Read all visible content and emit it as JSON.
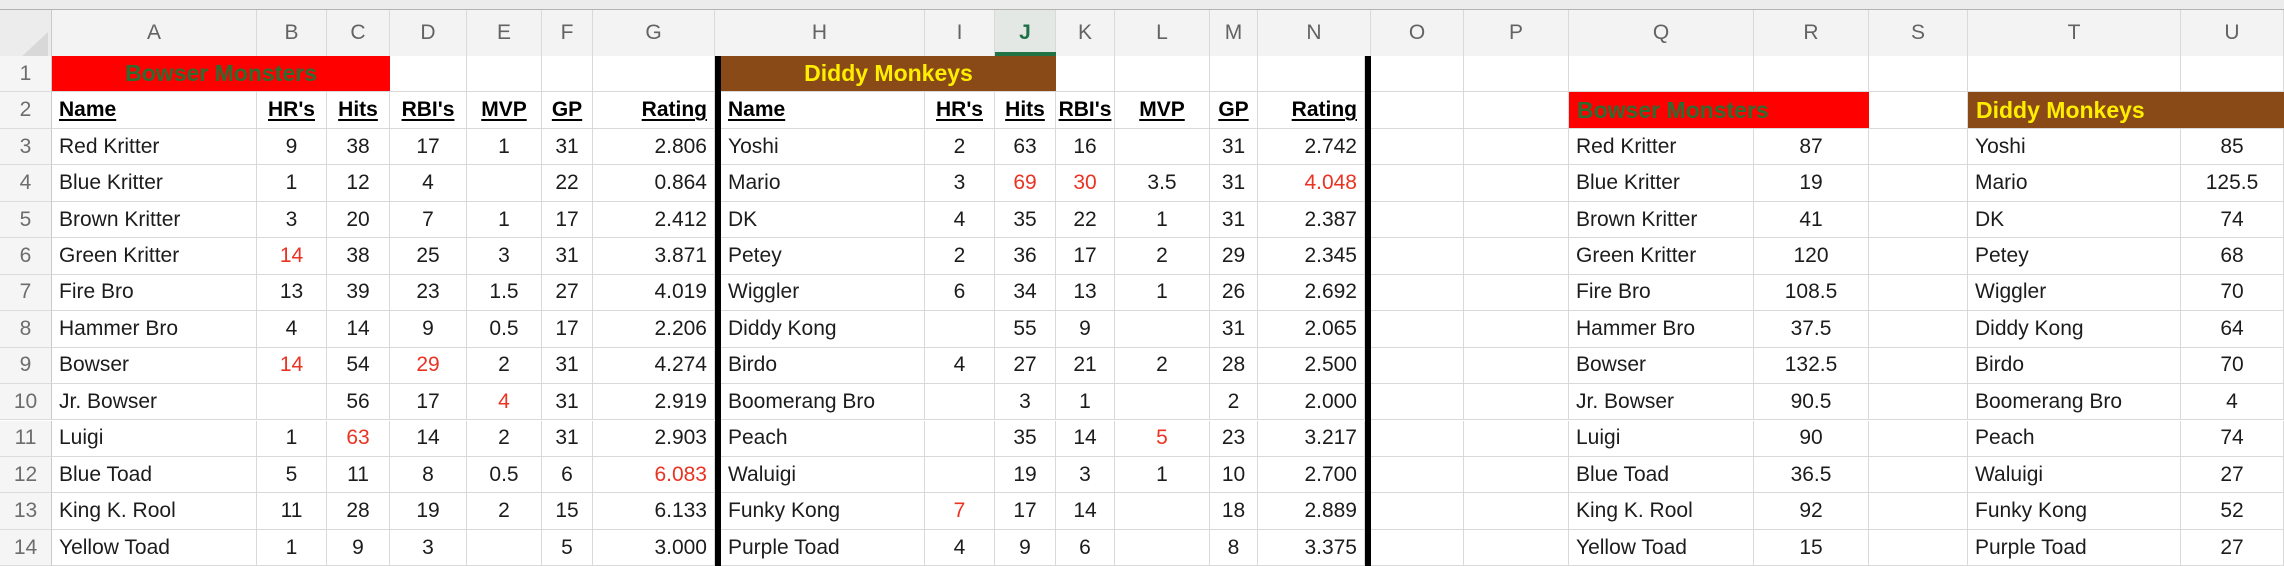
{
  "sheet": {
    "columns": [
      "A",
      "B",
      "C",
      "D",
      "E",
      "F",
      "G",
      "H",
      "I",
      "J",
      "K",
      "L",
      "M",
      "N",
      "O",
      "P",
      "Q",
      "R",
      "S",
      "T",
      "U"
    ],
    "selected_column": "J",
    "rows": [
      "1",
      "2",
      "3",
      "4",
      "5",
      "6",
      "7",
      "8",
      "9",
      "10",
      "11",
      "12",
      "13",
      "14"
    ]
  },
  "colors": {
    "banner_red": "#ff0000",
    "banner_brown": "#8a4a17",
    "title_green": "#2e6b30",
    "title_yellow": "#ffee00",
    "value_red": "#ea3323",
    "selection_green": "#217346"
  },
  "stat_headers": [
    "Name",
    "HR's",
    "Hits",
    "RBI's",
    "MVP",
    "GP",
    "Rating"
  ],
  "teams": {
    "bowser": {
      "title": "Bowser Monsters",
      "rows": [
        [
          "Red Kritter",
          "9",
          "38",
          "17",
          "1",
          "31",
          "2.806"
        ],
        [
          "Blue Kritter",
          "1",
          "12",
          "4",
          "",
          "22",
          "0.864"
        ],
        [
          "Brown Kritter",
          "3",
          "20",
          "7",
          "1",
          "17",
          "2.412"
        ],
        [
          "Green Kritter",
          "14",
          "38",
          "25",
          "3",
          "31",
          "3.871"
        ],
        [
          "Fire Bro",
          "13",
          "39",
          "23",
          "1.5",
          "27",
          "4.019"
        ],
        [
          "Hammer Bro",
          "4",
          "14",
          "9",
          "0.5",
          "17",
          "2.206"
        ],
        [
          "Bowser",
          "14",
          "54",
          "29",
          "2",
          "31",
          "4.274"
        ],
        [
          "Jr. Bowser",
          "",
          "56",
          "17",
          "4",
          "31",
          "2.919"
        ],
        [
          "Luigi",
          "1",
          "63",
          "14",
          "2",
          "31",
          "2.903"
        ],
        [
          "Blue Toad",
          "5",
          "11",
          "8",
          "0.5",
          "6",
          "6.083"
        ],
        [
          "King K. Rool",
          "11",
          "28",
          "19",
          "2",
          "15",
          "6.133"
        ],
        [
          "Yellow Toad",
          "1",
          "9",
          "3",
          "",
          "5",
          "3.000"
        ]
      ],
      "red_cells": [
        [
          3,
          1
        ],
        [
          6,
          1
        ],
        [
          6,
          3
        ],
        [
          7,
          4
        ],
        [
          8,
          2
        ],
        [
          9,
          6
        ]
      ]
    },
    "diddy": {
      "title": "Diddy Monkeys",
      "rows": [
        [
          "Yoshi",
          "2",
          "63",
          "16",
          "",
          "31",
          "2.742"
        ],
        [
          "Mario",
          "3",
          "69",
          "30",
          "3.5",
          "31",
          "4.048"
        ],
        [
          "DK",
          "4",
          "35",
          "22",
          "1",
          "31",
          "2.387"
        ],
        [
          "Petey",
          "2",
          "36",
          "17",
          "2",
          "29",
          "2.345"
        ],
        [
          "Wiggler",
          "6",
          "34",
          "13",
          "1",
          "26",
          "2.692"
        ],
        [
          "Diddy Kong",
          "",
          "55",
          "9",
          "",
          "31",
          "2.065"
        ],
        [
          "Birdo",
          "4",
          "27",
          "21",
          "2",
          "28",
          "2.500"
        ],
        [
          "Boomerang Bro",
          "",
          "3",
          "1",
          "",
          "2",
          "2.000"
        ],
        [
          "Peach",
          "",
          "35",
          "14",
          "5",
          "23",
          "3.217"
        ],
        [
          "Waluigi",
          "",
          "19",
          "3",
          "1",
          "10",
          "2.700"
        ],
        [
          "Funky Kong",
          "7",
          "17",
          "14",
          "",
          "18",
          "2.889"
        ],
        [
          "Purple Toad",
          "4",
          "9",
          "6",
          "",
          "8",
          "3.375"
        ]
      ],
      "red_cells": [
        [
          1,
          2
        ],
        [
          1,
          3
        ],
        [
          1,
          6
        ],
        [
          8,
          4
        ],
        [
          10,
          1
        ]
      ]
    },
    "bowser_summary": {
      "title": "Bowser Monsters",
      "rows": [
        [
          "Red Kritter",
          "87"
        ],
        [
          "Blue Kritter",
          "19"
        ],
        [
          "Brown Kritter",
          "41"
        ],
        [
          "Green Kritter",
          "120"
        ],
        [
          "Fire Bro",
          "108.5"
        ],
        [
          "Hammer Bro",
          "37.5"
        ],
        [
          "Bowser",
          "132.5"
        ],
        [
          "Jr. Bowser",
          "90.5"
        ],
        [
          "Luigi",
          "90"
        ],
        [
          "Blue Toad",
          "36.5"
        ],
        [
          "King K. Rool",
          "92"
        ],
        [
          "Yellow Toad",
          "15"
        ]
      ]
    },
    "diddy_summary": {
      "title": "Diddy Monkeys",
      "rows": [
        [
          "Yoshi",
          "85"
        ],
        [
          "Mario",
          "125.5"
        ],
        [
          "DK",
          "74"
        ],
        [
          "Petey",
          "68"
        ],
        [
          "Wiggler",
          "70"
        ],
        [
          "Diddy Kong",
          "64"
        ],
        [
          "Birdo",
          "70"
        ],
        [
          "Boomerang Bro",
          "4"
        ],
        [
          "Peach",
          "74"
        ],
        [
          "Waluigi",
          "27"
        ],
        [
          "Funky Kong",
          "52"
        ],
        [
          "Purple Toad",
          "27"
        ]
      ]
    }
  }
}
